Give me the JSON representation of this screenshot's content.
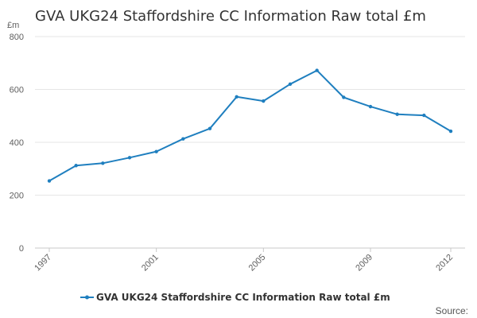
{
  "chart_data": {
    "type": "line",
    "title": "GVA UKG24 Staffordshire CC Information Raw total £m",
    "unit_label": "£m",
    "xlabel": "",
    "ylabel": "",
    "x": [
      1997,
      1998,
      1999,
      2000,
      2001,
      2002,
      2003,
      2004,
      2005,
      2006,
      2007,
      2008,
      2009,
      2010,
      2011,
      2012
    ],
    "x_tick_labels": [
      "1997",
      "2001",
      "2005",
      "2009",
      "2012"
    ],
    "y_tick_labels": [
      "0",
      "200",
      "400",
      "600",
      "800"
    ],
    "ylim": [
      0,
      800
    ],
    "grid": true,
    "legend_position": "bottom",
    "series": [
      {
        "name": "GVA UKG24 Staffordshire CC Information Raw total £m",
        "color": "#1f7fbf",
        "values": [
          254,
          312,
          321,
          342,
          365,
          413,
          452,
          572,
          556,
          620,
          672,
          570,
          535,
          506,
          502,
          442
        ]
      }
    ]
  },
  "source_label": "Source:"
}
